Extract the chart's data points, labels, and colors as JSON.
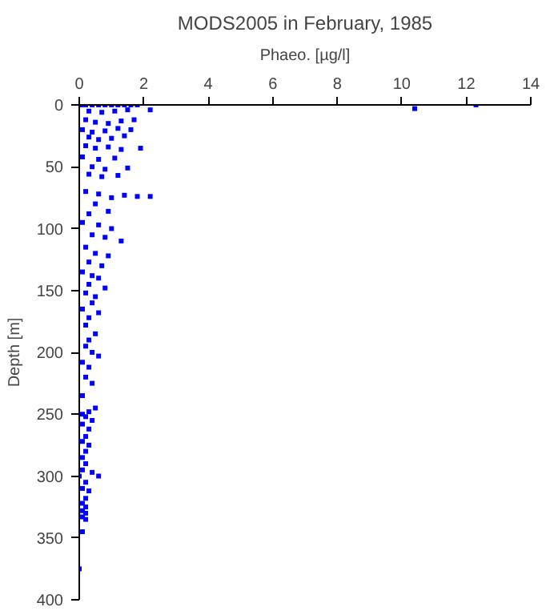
{
  "chart_data": {
    "type": "scatter",
    "title": "MODS2005 in February, 1985",
    "xlabel": "Phaeo. [µg/l]",
    "ylabel": "Depth [m]",
    "xlim": [
      0,
      14
    ],
    "xticks": [
      0,
      2,
      4,
      6,
      8,
      10,
      12,
      14
    ],
    "ylim": [
      400,
      0
    ],
    "yticks": [
      0,
      50,
      100,
      150,
      200,
      250,
      300,
      350,
      400
    ],
    "marker": "square",
    "grid": false,
    "series": [
      {
        "color": "#0000ff",
        "x": [
          0.05,
          0.2,
          0.4,
          0.6,
          0.8,
          1.0,
          1.2,
          1.4,
          1.6,
          1.8,
          10.4,
          12.3,
          0.3,
          0.7,
          1.1,
          1.5,
          2.2,
          0.2,
          0.5,
          0.9,
          1.3,
          1.7,
          0.1,
          0.4,
          0.8,
          1.2,
          1.6,
          0.3,
          0.6,
          1.0,
          1.4,
          0.2,
          0.5,
          0.9,
          1.3,
          1.9,
          0.1,
          0.6,
          1.1,
          0.4,
          0.8,
          1.5,
          0.3,
          0.7,
          1.2,
          1.8,
          2.2,
          0.2,
          0.6,
          1.0,
          1.4,
          0.5,
          0.3,
          0.9,
          0.1,
          0.6,
          1.0,
          0.4,
          0.8,
          1.3,
          0.2,
          0.5,
          0.9,
          0.3,
          0.7,
          0.1,
          0.4,
          0.6,
          0.3,
          0.8,
          0.2,
          0.5,
          0.4,
          0.1,
          0.6,
          0.3,
          0.2,
          0.5,
          0.3,
          0.2,
          0.4,
          0.6,
          0.1,
          0.3,
          0.2,
          0.4,
          0.1,
          0.5,
          0.3,
          0.1,
          0.2,
          0.4,
          0.1,
          0.3,
          0.2,
          0.1,
          0.3,
          0.2,
          0.1,
          0.2,
          0.1,
          0.0,
          0.4,
          0.2,
          0.6,
          0.1,
          0.3,
          0.2,
          0.1,
          0.2,
          0.1,
          0.2,
          0.1,
          0.2,
          0.1,
          0.0
        ],
        "values": [
          0,
          0,
          0,
          0,
          0,
          0,
          0,
          0,
          0,
          0,
          3,
          0,
          5,
          6,
          5,
          4,
          4,
          12,
          14,
          15,
          13,
          12,
          20,
          22,
          21,
          19,
          20,
          26,
          28,
          27,
          25,
          33,
          35,
          34,
          36,
          35,
          42,
          44,
          43,
          50,
          52,
          51,
          56,
          58,
          57,
          74,
          74,
          70,
          72,
          75,
          73,
          80,
          88,
          86,
          95,
          97,
          100,
          105,
          107,
          110,
          115,
          120,
          122,
          127,
          130,
          135,
          138,
          140,
          145,
          148,
          152,
          155,
          160,
          165,
          168,
          172,
          178,
          185,
          190,
          195,
          200,
          203,
          208,
          212,
          220,
          225,
          235,
          245,
          248,
          250,
          252,
          255,
          258,
          262,
          268,
          272,
          275,
          280,
          285,
          290,
          295,
          300,
          297,
          305,
          300,
          310,
          312,
          318,
          322,
          325,
          328,
          330,
          333,
          335,
          345,
          375
        ]
      }
    ]
  }
}
